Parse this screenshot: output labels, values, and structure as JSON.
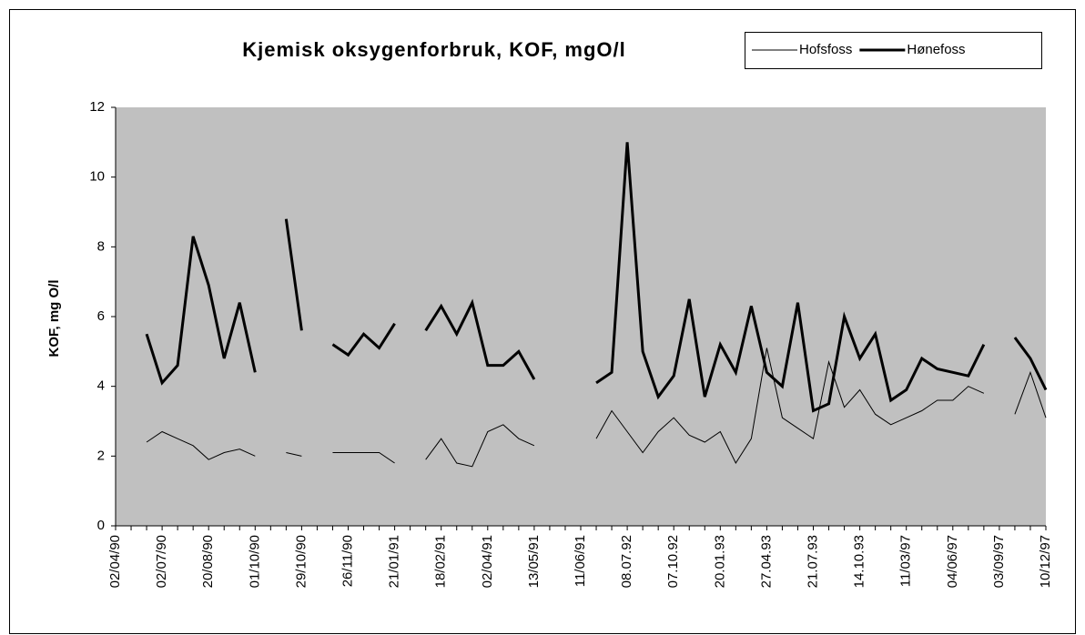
{
  "chart_data": {
    "type": "line",
    "title": "Kjemisk oksygenforbruk, KOF, mgO/l",
    "y_label": "KOF, mg O/l",
    "categories": [
      "02/04/90",
      null,
      null,
      "02/07/90",
      null,
      null,
      "20/08/90",
      null,
      null,
      "01/10/90",
      null,
      null,
      "29/10/90",
      null,
      null,
      "26/11/90",
      null,
      null,
      "21/01/91",
      null,
      null,
      "18/02/91",
      null,
      null,
      "02/04/91",
      null,
      null,
      "13/05/91",
      null,
      null,
      "11/06/91",
      null,
      null,
      "08.07.92",
      null,
      null,
      "07.10.92",
      null,
      null,
      "20.01.93",
      null,
      null,
      "27.04.93",
      null,
      null,
      "21.07.93",
      null,
      null,
      "14.10.93",
      null,
      null,
      "11/03/97",
      null,
      null,
      "04/06/97",
      null,
      null,
      "03/09/97",
      null,
      null,
      "10/12/97"
    ],
    "series": [
      {
        "name": "Hofsfoss",
        "color": "#000000",
        "width": 1,
        "values": [
          null,
          null,
          2.4,
          2.7,
          2.5,
          2.3,
          1.9,
          2.1,
          2.2,
          2.0,
          null,
          2.1,
          2.0,
          null,
          2.1,
          2.1,
          2.1,
          2.1,
          1.8,
          null,
          1.9,
          2.5,
          1.8,
          1.7,
          2.7,
          2.9,
          2.5,
          2.3,
          null,
          null,
          null,
          2.5,
          3.3,
          2.7,
          2.1,
          2.7,
          3.1,
          2.6,
          2.4,
          2.7,
          1.8,
          2.5,
          5.1,
          3.1,
          2.8,
          2.5,
          4.7,
          3.4,
          3.9,
          3.2,
          2.9,
          3.1,
          3.3,
          3.6,
          3.6,
          4.0,
          3.8,
          null,
          3.2,
          4.4,
          3.1
        ]
      },
      {
        "name": "Hønefoss",
        "color": "#000000",
        "width": 3,
        "values": [
          null,
          null,
          5.5,
          4.1,
          4.6,
          8.3,
          6.9,
          4.8,
          6.4,
          4.4,
          null,
          8.8,
          5.6,
          null,
          5.2,
          4.9,
          5.5,
          5.1,
          5.8,
          null,
          5.6,
          6.3,
          5.5,
          6.4,
          4.6,
          4.6,
          5.0,
          4.2,
          null,
          null,
          null,
          4.1,
          4.4,
          11.0,
          5.0,
          3.7,
          4.3,
          6.5,
          3.7,
          5.2,
          4.4,
          6.3,
          4.4,
          4.0,
          6.4,
          3.3,
          3.5,
          6.0,
          4.8,
          5.5,
          3.6,
          3.9,
          4.8,
          4.5,
          4.4,
          4.3,
          5.2,
          null,
          5.4,
          4.8,
          3.9
        ]
      }
    ],
    "ylim": [
      0,
      12
    ],
    "yticks": [
      0,
      2,
      4,
      6,
      8,
      10,
      12
    ],
    "grid": false,
    "plot_background": "#c0c0c0",
    "legend": "top-right"
  }
}
